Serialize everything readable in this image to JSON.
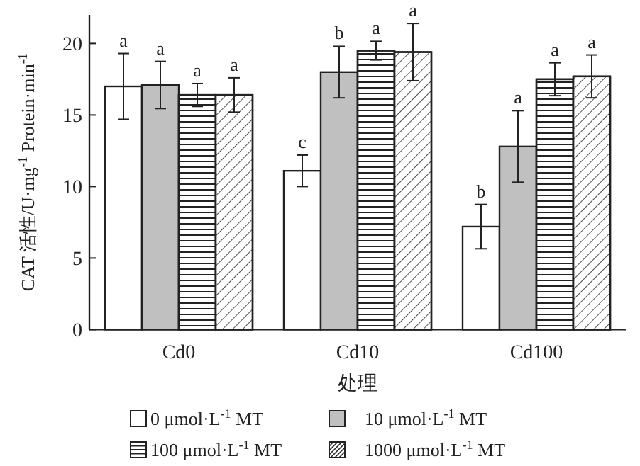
{
  "chart_data": {
    "type": "bar",
    "xlabel": "处理",
    "ylabel": "CAT 活性/U·mg$^{-1}$ Protein·min$^{-1}$",
    "categories": [
      "Cd0",
      "Cd10",
      "Cd100"
    ],
    "ylim": [
      0,
      22
    ],
    "yticks": [
      0,
      5,
      10,
      15,
      20
    ],
    "legend": "bottom",
    "grid": false,
    "series": [
      {
        "name": "0 μmol·L$^{-1}$ MT",
        "color": "#ffffff",
        "values": [
          17.0,
          11.1,
          7.2
        ],
        "errors": [
          2.3,
          1.1,
          1.55
        ],
        "value_labels": [
          "a",
          "c",
          "b"
        ]
      },
      {
        "name": "10 μmol·L$^{-1}$ MT",
        "color": "#c0c0c0",
        "values": [
          17.1,
          18.0,
          12.8
        ],
        "errors": [
          1.65,
          1.8,
          2.5
        ],
        "value_labels": [
          "a",
          "b",
          "a"
        ]
      },
      {
        "name": "100 μmol·L$^{-1}$ MT",
        "color": "#ffffff",
        "values": [
          16.4,
          19.5,
          17.5
        ],
        "errors": [
          0.8,
          0.65,
          1.15
        ],
        "value_labels": [
          "a",
          "a",
          "a"
        ]
      },
      {
        "name": "1000 μmol·L$^{-1}$ MT",
        "color": "#ffffff",
        "values": [
          16.4,
          19.4,
          17.7
        ],
        "errors": [
          1.2,
          2.0,
          1.5
        ],
        "value_labels": [
          "a",
          "a",
          "a"
        ]
      }
    ]
  }
}
